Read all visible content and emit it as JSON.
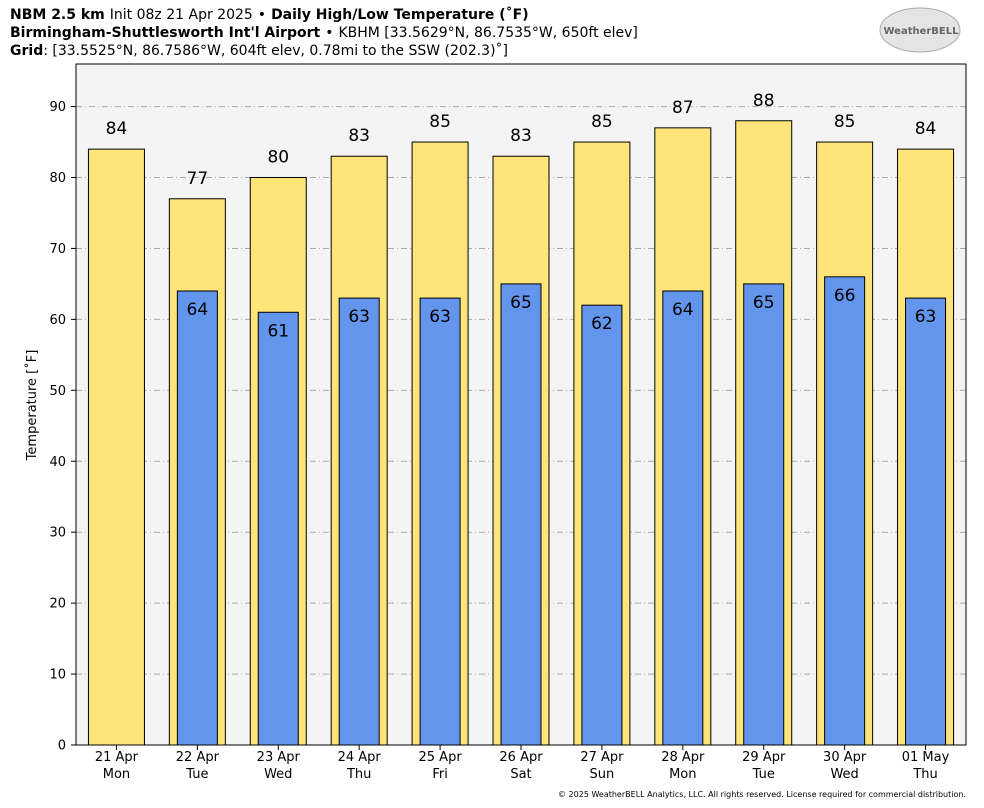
{
  "chart_data": {
    "type": "bar",
    "title": {
      "model": "NBM 2.5 km",
      "init": "Init 08z 21 Apr 2025",
      "separator": "•",
      "product": "Daily High/Low Temperature (˚F)"
    },
    "location": {
      "name": "Birmingham-Shuttlesworth Int'l Airport",
      "separator": "•",
      "station": "KBHM [33.5629°N, 86.7535°W, 650ft elev]"
    },
    "grid_point": {
      "label": "Grid",
      "text": ": [33.5525°N, 86.7586°W, 604ft elev, 0.78mi to the SSW (202.3)˚]"
    },
    "logo": "WeatherBELL",
    "footer": "© 2025 WeatherBELL Analytics, LLC. All rights reserved. License required for commercial distribution.",
    "y_label": "Temperature [˚F]",
    "categories": [
      "21 Apr",
      "22 Apr",
      "23 Apr",
      "24 Apr",
      "25 Apr",
      "26 Apr",
      "27 Apr",
      "28 Apr",
      "29 Apr",
      "30 Apr",
      "01 May"
    ],
    "weekdays": [
      "Mon",
      "Tue",
      "Wed",
      "Thu",
      "Fri",
      "Sat",
      "Sun",
      "Mon",
      "Tue",
      "Wed",
      "Thu"
    ],
    "series": [
      {
        "color": "#ffe47a",
        "values": [
          84,
          77,
          80,
          83,
          85,
          83,
          85,
          87,
          88,
          85,
          84
        ]
      },
      {
        "color": "#6495ed",
        "values": [
          null,
          64,
          61,
          63,
          63,
          65,
          62,
          64,
          65,
          66,
          63
        ]
      }
    ],
    "ylim": [
      0,
      96
    ],
    "yticks": [
      0,
      10,
      20,
      30,
      40,
      50,
      60,
      70,
      80,
      90
    ],
    "grid": true
  }
}
